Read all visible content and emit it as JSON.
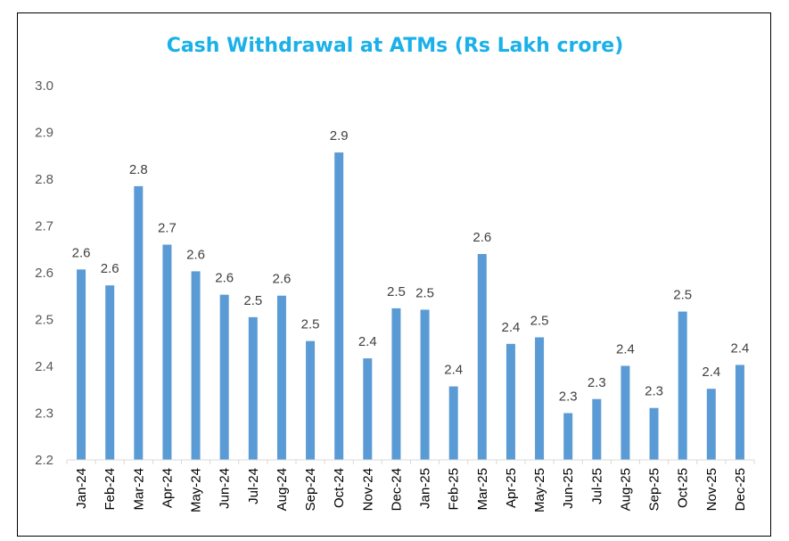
{
  "chart_data": {
    "type": "bar",
    "title": "Cash Withdrawal at ATMs (Rs Lakh crore)",
    "xlabel": "",
    "ylabel": "",
    "categories": [
      "Jan-24",
      "Feb-24",
      "Mar-24",
      "Apr-24",
      "May-24",
      "Jun-24",
      "Jul-24",
      "Aug-24",
      "Sep-24",
      "Oct-24",
      "Nov-24",
      "Dec-24",
      "Jan-25",
      "Feb-25",
      "Mar-25",
      "Apr-25",
      "May-25",
      "Jun-25",
      "Jul-25",
      "Aug-25",
      "Sep-25",
      "Oct-25",
      "Nov-25",
      "Dec-25"
    ],
    "values": [
      2.607,
      2.573,
      2.785,
      2.66,
      2.603,
      2.553,
      2.505,
      2.551,
      2.454,
      2.857,
      2.417,
      2.524,
      2.521,
      2.357,
      2.64,
      2.448,
      2.462,
      2.3,
      2.33,
      2.401,
      2.311,
      2.517,
      2.352,
      2.403
    ],
    "data_labels": [
      "2.6",
      "2.6",
      "2.8",
      "2.7",
      "2.6",
      "2.6",
      "2.5",
      "2.6",
      "2.5",
      "2.9",
      "2.4",
      "2.5",
      "2.5",
      "2.4",
      "2.6",
      "2.4",
      "2.5",
      "2.3",
      "2.3",
      "2.4",
      "2.3",
      "2.5",
      "2.4",
      "2.4"
    ],
    "ylim": [
      2.2,
      3.0
    ],
    "yticks": [
      "2.2",
      "2.3",
      "2.4",
      "2.5",
      "2.6",
      "2.7",
      "2.8",
      "2.9",
      "3.0"
    ],
    "grid": false,
    "legend": "none",
    "colors": {
      "bar": "#5b9bd5",
      "title": "#1ab0e8",
      "axis": "#d9d9d9"
    }
  }
}
